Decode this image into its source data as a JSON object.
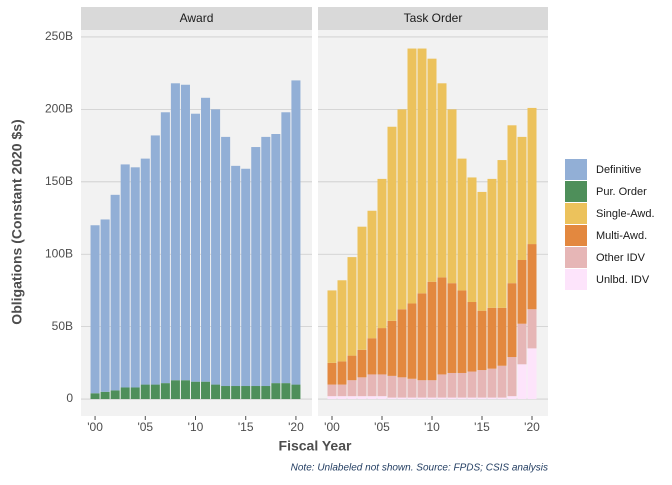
{
  "chart_data": {
    "type": "bar",
    "stacked": true,
    "y_label": "Obligations (Constant 2020 $s)",
    "x_label": "Fiscal Year",
    "note": "Note: Unlabeled not shown. Source: FPDS; CSIS analysis",
    "x": [
      2000,
      2001,
      2002,
      2003,
      2004,
      2005,
      2006,
      2007,
      2008,
      2009,
      2010,
      2011,
      2012,
      2013,
      2014,
      2015,
      2016,
      2017,
      2018,
      2019,
      2020
    ],
    "xlim": [
      1998.6,
      2021.6
    ],
    "xticks": [
      {
        "value": 2000,
        "label": "'00"
      },
      {
        "value": 2005,
        "label": "'05"
      },
      {
        "value": 2010,
        "label": "'10"
      },
      {
        "value": 2015,
        "label": "'15"
      },
      {
        "value": 2020,
        "label": "'20"
      }
    ],
    "ylim": [
      -11.7,
      254.8
    ],
    "yticks": [
      0,
      {
        "value": 50,
        "label": "50B"
      },
      {
        "value": 100,
        "label": "100B"
      },
      {
        "value": 150,
        "label": "150B"
      },
      {
        "value": 200,
        "label": "200B"
      },
      {
        "value": 250,
        "label": "250B"
      }
    ],
    "grid": true,
    "legend": "right",
    "facets": [
      {
        "title": "Award",
        "series": [
          {
            "name": "Pur. Order",
            "color": "#4e8f5a",
            "values": [
              4,
              5,
              6,
              8,
              8,
              10,
              10,
              11,
              13,
              13,
              12,
              12,
              10,
              9,
              9,
              9,
              9,
              9,
              11,
              11,
              10
            ]
          },
          {
            "name": "Definitive",
            "color": "#92afd6",
            "values": [
              116,
              119,
              135,
              154,
              152,
              156,
              172,
              187,
              205,
              204,
              185,
              196,
              190,
              172,
              152,
              150,
              165,
              172,
              172,
              187,
              210
            ]
          }
        ]
      },
      {
        "title": "Task Order",
        "series": [
          {
            "name": "Unlbd. IDV",
            "color": "#fde4fb",
            "values": [
              2,
              2,
              2,
              2,
              2,
              2,
              1,
              1,
              1,
              1,
              1,
              1,
              1,
              1,
              1,
              1,
              1,
              1,
              2,
              24,
              35
            ]
          },
          {
            "name": "Other IDV",
            "color": "#e6b6b6",
            "values": [
              8,
              8,
              11,
              13,
              15,
              15,
              15,
              14,
              13,
              12,
              12,
              16,
              17,
              17,
              18,
              19,
              20,
              22,
              27,
              28,
              27
            ]
          },
          {
            "name": "Multi-Awd.",
            "color": "#e3883f",
            "values": [
              15,
              16,
              17,
              19,
              25,
              32,
              38,
              47,
              52,
              60,
              68,
              67,
              62,
              57,
              48,
              41,
              42,
              40,
              51,
              44,
              45
            ]
          },
          {
            "name": "Single-Awd.",
            "color": "#ecc25c",
            "values": [
              50,
              56,
              68,
              85,
              88,
              103,
              134,
              138,
              176,
              169,
              154,
              134,
              120,
              91,
              86,
              82,
              89,
              102,
              109,
              85,
              94
            ]
          }
        ]
      }
    ]
  }
}
